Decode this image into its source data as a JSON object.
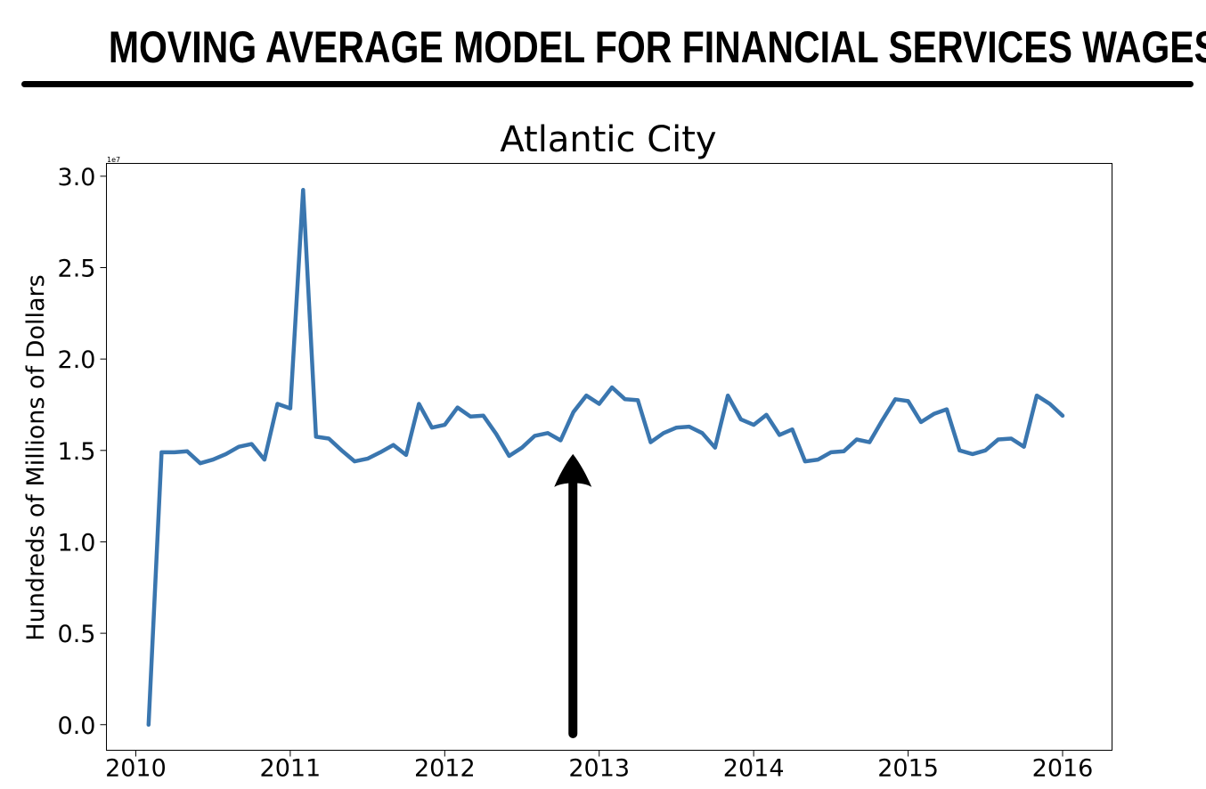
{
  "header": {
    "title": "MOVING AVERAGE MODEL FOR FINANCIAL SERVICES WAGES"
  },
  "colors": {
    "line": "#3a76af",
    "text": "#000000",
    "arrow": "#000000"
  },
  "chart_data": {
    "type": "line",
    "title": "Atlantic City",
    "xlabel": "",
    "ylabel": "Hundreds of Millions of Dollars",
    "y_offset_text": "1e7",
    "y_multiplier": 10000000,
    "xlim": [
      2009.81,
      2016.32
    ],
    "ylim": [
      -0.14,
      3.07
    ],
    "x_ticks": [
      2010,
      2011,
      2012,
      2013,
      2014,
      2015,
      2016
    ],
    "x_tick_labels": [
      "2010",
      "2011",
      "2012",
      "2013",
      "2014",
      "2015",
      "2016"
    ],
    "y_ticks": [
      0.0,
      0.5,
      1.0,
      1.5,
      2.0,
      2.5,
      3.0
    ],
    "y_tick_labels": [
      "0.0",
      "0.5",
      "1.0",
      "1.5",
      "2.0",
      "2.5",
      "3.0"
    ],
    "grid": false,
    "legend": "none",
    "annotation": {
      "type": "arrow",
      "x": 2012.83,
      "y_tail": -0.05,
      "y_head": 1.48
    },
    "series": [
      {
        "x": [
          2010.083,
          2010.167,
          2010.25,
          2010.333,
          2010.417,
          2010.5,
          2010.583,
          2010.667,
          2010.75,
          2010.833,
          2010.917,
          2011.0,
          2011.083,
          2011.167,
          2011.25,
          2011.333,
          2011.417,
          2011.5,
          2011.583,
          2011.667,
          2011.75,
          2011.833,
          2011.917,
          2012.0,
          2012.083,
          2012.167,
          2012.25,
          2012.333,
          2012.417,
          2012.5,
          2012.583,
          2012.667,
          2012.75,
          2012.833,
          2012.917,
          2013.0,
          2013.083,
          2013.167,
          2013.25,
          2013.333,
          2013.417,
          2013.5,
          2013.583,
          2013.667,
          2013.75,
          2013.833,
          2013.917,
          2014.0,
          2014.083,
          2014.167,
          2014.25,
          2014.333,
          2014.417,
          2014.5,
          2014.583,
          2014.667,
          2014.75,
          2014.833,
          2014.917,
          2015.0,
          2015.083,
          2015.167,
          2015.25,
          2015.333,
          2015.417,
          2015.5,
          2015.583,
          2015.667,
          2015.75,
          2015.833,
          2015.917,
          2016.0
        ],
        "values": [
          0.0,
          1.49,
          1.49,
          1.495,
          1.43,
          1.45,
          1.48,
          1.52,
          1.535,
          1.45,
          1.755,
          1.73,
          2.925,
          1.575,
          1.565,
          1.5,
          1.44,
          1.455,
          1.49,
          1.53,
          1.475,
          1.755,
          1.625,
          1.64,
          1.735,
          1.685,
          1.69,
          1.59,
          1.47,
          1.515,
          1.58,
          1.595,
          1.555,
          1.71,
          1.8,
          1.755,
          1.845,
          1.78,
          1.775,
          1.545,
          1.595,
          1.625,
          1.63,
          1.595,
          1.515,
          1.8,
          1.67,
          1.64,
          1.695,
          1.585,
          1.615,
          1.44,
          1.45,
          1.49,
          1.495,
          1.56,
          1.545,
          1.665,
          1.78,
          1.77,
          1.655,
          1.7,
          1.725,
          1.5,
          1.48,
          1.5,
          1.56,
          1.565,
          1.52,
          1.8,
          1.755,
          1.69
        ]
      }
    ]
  }
}
